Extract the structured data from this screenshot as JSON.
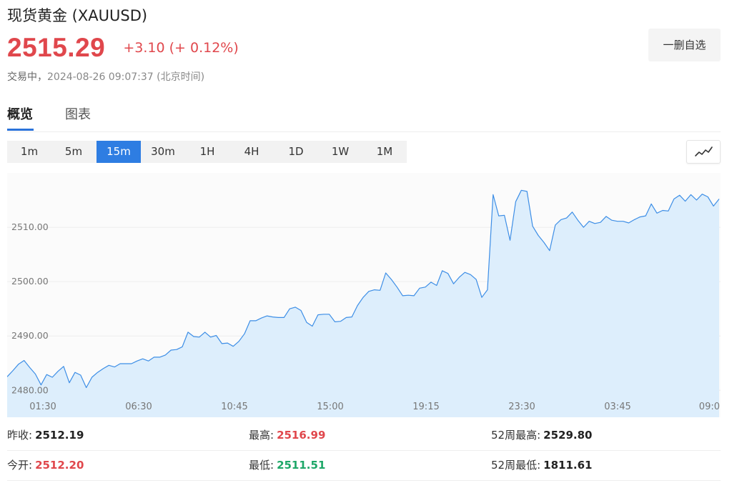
{
  "header": {
    "title": "现货黄金  (XAUUSD)",
    "price": "2515.29",
    "change": "+3.10 (+ 0.12%)",
    "status": "交易中，",
    "timestamp": "2024-08-26 09:07:37 (北京时间)",
    "watch_button": "一删自选",
    "price_color": "#e0474c"
  },
  "tabs": [
    {
      "label": "概览",
      "active": true
    },
    {
      "label": "图表",
      "active": false
    }
  ],
  "periods": [
    {
      "label": "1m",
      "active": false
    },
    {
      "label": "5m",
      "active": false
    },
    {
      "label": "15m",
      "active": true
    },
    {
      "label": "30m",
      "active": false
    },
    {
      "label": "1H",
      "active": false
    },
    {
      "label": "4H",
      "active": false
    },
    {
      "label": "1D",
      "active": false
    },
    {
      "label": "1W",
      "active": false
    },
    {
      "label": "1M",
      "active": false
    }
  ],
  "chart_type_icon": "line-chart-icon",
  "chart_data": {
    "type": "area",
    "ylim": [
      2478.2,
      2520.0
    ],
    "y_ticks": [
      {
        "value": 2480,
        "label": "2480.00"
      },
      {
        "value": 2490,
        "label": "2490.00"
      },
      {
        "value": 2500,
        "label": "2500.00"
      },
      {
        "value": 2510,
        "label": "2510.00"
      }
    ],
    "x_ticks": [
      "01:30",
      "06:30",
      "10:45",
      "15:00",
      "19:15",
      "23:30",
      "03:45",
      "09:0"
    ],
    "line_color": "#3d8ee6",
    "fill_color": "#ddeefc",
    "values": [
      2482.5,
      2483.6,
      2484.8,
      2485.5,
      2484.2,
      2483.0,
      2481.0,
      2482.9,
      2482.4,
      2483.5,
      2484.4,
      2481.4,
      2483.3,
      2482.8,
      2480.5,
      2482.4,
      2483.3,
      2484.0,
      2484.6,
      2484.3,
      2484.9,
      2484.9,
      2484.9,
      2485.4,
      2485.8,
      2485.4,
      2486.1,
      2486.1,
      2486.5,
      2487.4,
      2487.5,
      2488.0,
      2490.7,
      2489.9,
      2489.8,
      2490.7,
      2489.8,
      2490.1,
      2488.6,
      2488.7,
      2488.1,
      2489.0,
      2490.4,
      2492.8,
      2492.8,
      2493.3,
      2493.7,
      2493.5,
      2493.4,
      2493.4,
      2495.0,
      2495.3,
      2494.7,
      2492.5,
      2491.8,
      2493.9,
      2494.0,
      2494.0,
      2492.6,
      2492.7,
      2493.4,
      2493.5,
      2495.6,
      2497.1,
      2498.2,
      2498.5,
      2498.4,
      2501.6,
      2500.4,
      2499.0,
      2497.4,
      2497.5,
      2497.4,
      2498.8,
      2499.0,
      2499.9,
      2499.3,
      2502.0,
      2501.5,
      2499.6,
      2500.8,
      2501.7,
      2501.3,
      2500.4,
      2497.1,
      2498.5,
      2516.0,
      2512.1,
      2512.2,
      2507.6,
      2514.7,
      2516.8,
      2516.6,
      2510.2,
      2508.5,
      2507.2,
      2505.7,
      2510.4,
      2511.4,
      2511.7,
      2512.8,
      2511.3,
      2510.0,
      2511.1,
      2510.7,
      2510.9,
      2512.0,
      2511.3,
      2511.1,
      2511.1,
      2510.8,
      2511.4,
      2511.9,
      2512.1,
      2514.3,
      2512.6,
      2513.1,
      2513.0,
      2515.2,
      2515.9,
      2514.8,
      2516.0,
      2515.0,
      2516.1,
      2515.6,
      2513.9,
      2515.2
    ]
  },
  "stats": [
    [
      {
        "label": "昨收:",
        "value": "2512.19",
        "tone": "neutral"
      },
      {
        "label": "最高:",
        "value": "2516.99",
        "tone": "up"
      },
      {
        "label": "52周最高:",
        "value": "2529.80",
        "tone": "neutral"
      }
    ],
    [
      {
        "label": "今开:",
        "value": "2512.20",
        "tone": "up"
      },
      {
        "label": "最低:",
        "value": "2511.51",
        "tone": "down"
      },
      {
        "label": "52周最低:",
        "value": "1811.61",
        "tone": "neutral"
      }
    ]
  ]
}
